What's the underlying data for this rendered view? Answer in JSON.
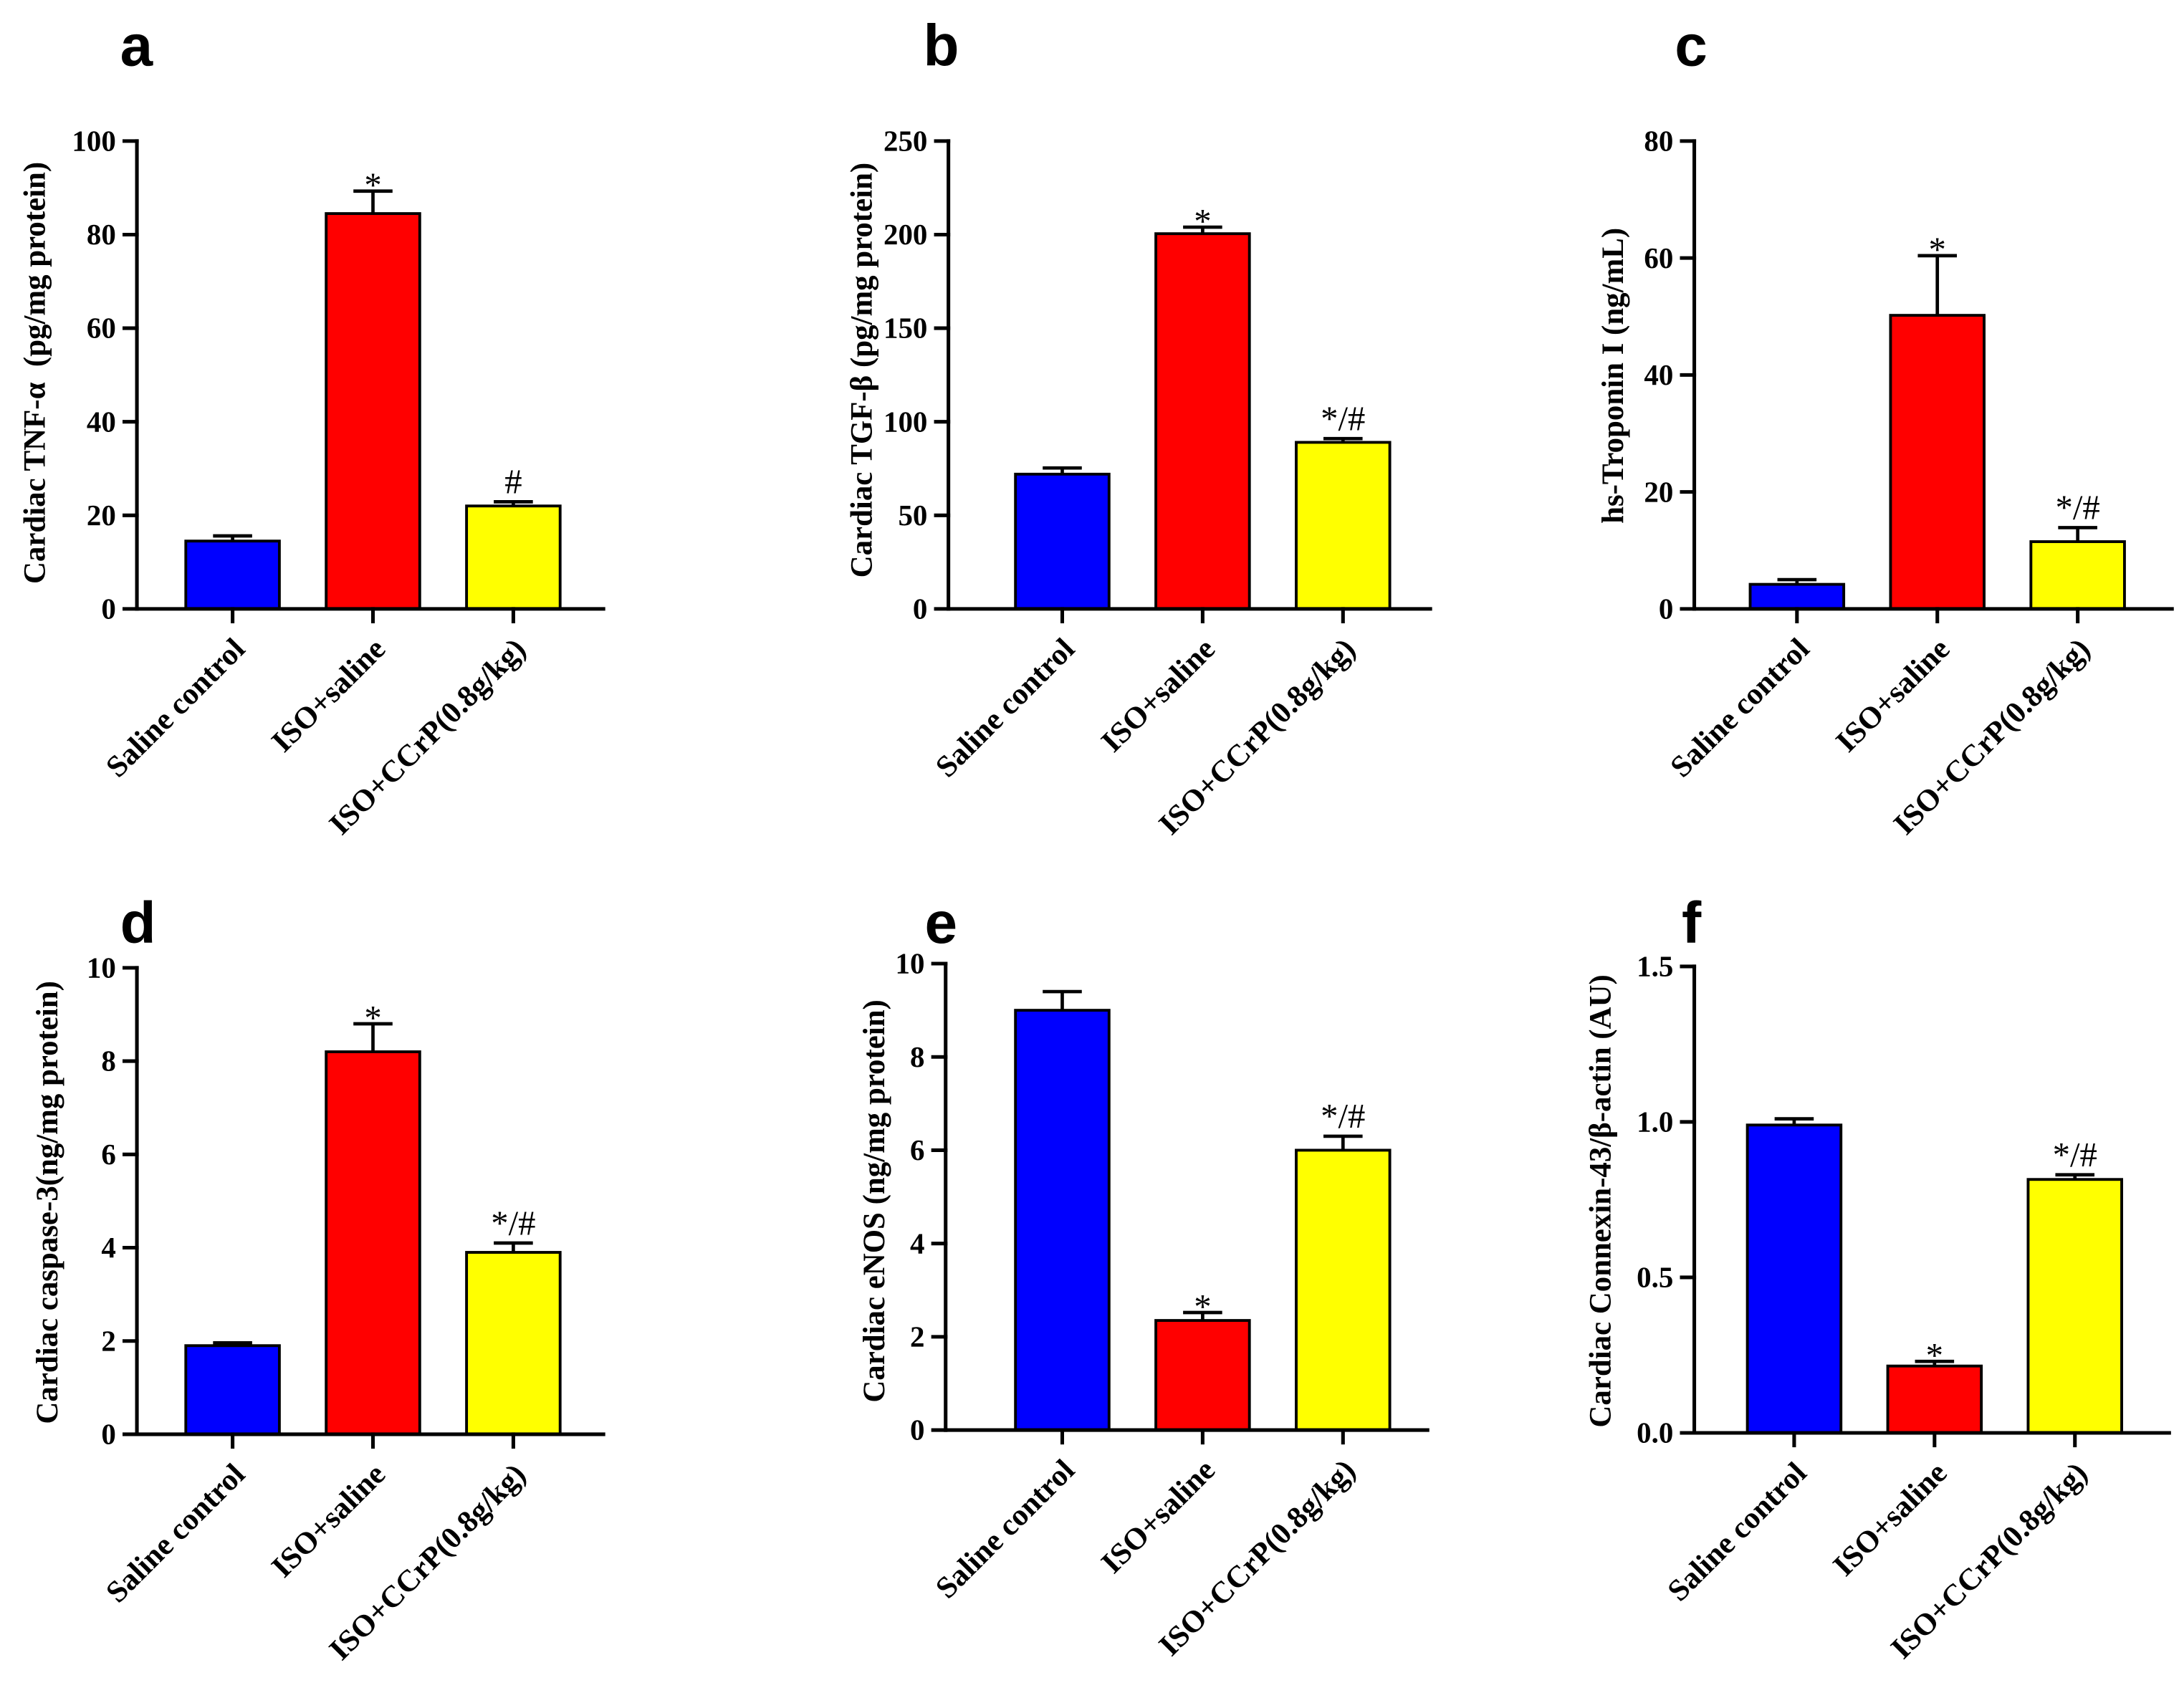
{
  "bar_colors": [
    "#0000FF",
    "#FF0000",
    "#FFFF00"
  ],
  "chart_data": [
    {
      "panel": "a",
      "type": "bar",
      "ylabel": "Cardiac TNF-α  (pg/mg protein)",
      "categories": [
        "Saline control",
        "ISO+saline",
        "ISO+CCrP(0.8g/kg)"
      ],
      "values": [
        14.5,
        84.5,
        22.0
      ],
      "errors": [
        1.1,
        4.8,
        0.9
      ],
      "annotations": [
        null,
        "*",
        "#"
      ],
      "ylim": [
        0,
        100
      ],
      "yticks": [
        "0",
        "20",
        "40",
        "60",
        "80",
        "100"
      ]
    },
    {
      "panel": "b",
      "type": "bar",
      "ylabel": "Cardiac TGF-β (pg/mg protein)",
      "categories": [
        "Saline control",
        "ISO+saline",
        "ISO+CCrP(0.8g/kg)"
      ],
      "values": [
        72.0,
        200.5,
        89.0
      ],
      "errors": [
        3.3,
        3.5,
        2.0
      ],
      "annotations": [
        null,
        "*",
        "*/#"
      ],
      "ylim": [
        0,
        250
      ],
      "yticks": [
        "0",
        "50",
        "100",
        "150",
        "200",
        "250"
      ]
    },
    {
      "panel": "c",
      "type": "bar",
      "ylabel": "hs-Troponin I (ng/mL)",
      "categories": [
        "Saline control",
        "ISO+saline",
        "ISO+CCrP(0.8g/kg)"
      ],
      "values": [
        4.2,
        50.2,
        11.5
      ],
      "errors": [
        0.8,
        10.2,
        2.4
      ],
      "annotations": [
        null,
        "*",
        "*/#"
      ],
      "ylim": [
        0,
        80
      ],
      "yticks": [
        "0",
        "20",
        "40",
        "60",
        "80"
      ]
    },
    {
      "panel": "d",
      "type": "bar",
      "ylabel": "Cardiac caspase-3(ng/mg protein)",
      "categories": [
        "Saline control",
        "ISO+saline",
        "ISO+CCrP(0.8g/kg)"
      ],
      "values": [
        1.9,
        8.2,
        3.9
      ],
      "errors": [
        0.06,
        0.6,
        0.2
      ],
      "annotations": [
        null,
        "*",
        "*/#"
      ],
      "ylim": [
        0,
        10
      ],
      "yticks": [
        "0",
        "2",
        "4",
        "6",
        "8",
        "10"
      ]
    },
    {
      "panel": "e",
      "type": "bar",
      "ylabel": "Cardiac eNOS (ng/mg protein)",
      "categories": [
        "Saline control",
        "ISO+saline",
        "ISO+CCrP(0.8g/kg)"
      ],
      "values": [
        9.0,
        2.35,
        6.0
      ],
      "errors": [
        0.4,
        0.17,
        0.3
      ],
      "annotations": [
        null,
        "*",
        "*/#"
      ],
      "ylim": [
        0,
        10
      ],
      "yticks": [
        "0",
        "2",
        "4",
        "6",
        "8",
        "10"
      ]
    },
    {
      "panel": "f",
      "type": "bar",
      "ylabel": "Cardiac Connexin-43/β-actin (AU)",
      "categories": [
        "Saline control",
        "ISO+saline",
        "ISO+CCrP(0.8g/kg)"
      ],
      "values": [
        0.99,
        0.215,
        0.815
      ],
      "errors": [
        0.02,
        0.015,
        0.015
      ],
      "annotations": [
        null,
        "*",
        "*/#"
      ],
      "ylim": [
        0,
        1.5
      ],
      "yticks": [
        "0.0",
        "0.5",
        "1.0",
        "1.5"
      ]
    }
  ]
}
